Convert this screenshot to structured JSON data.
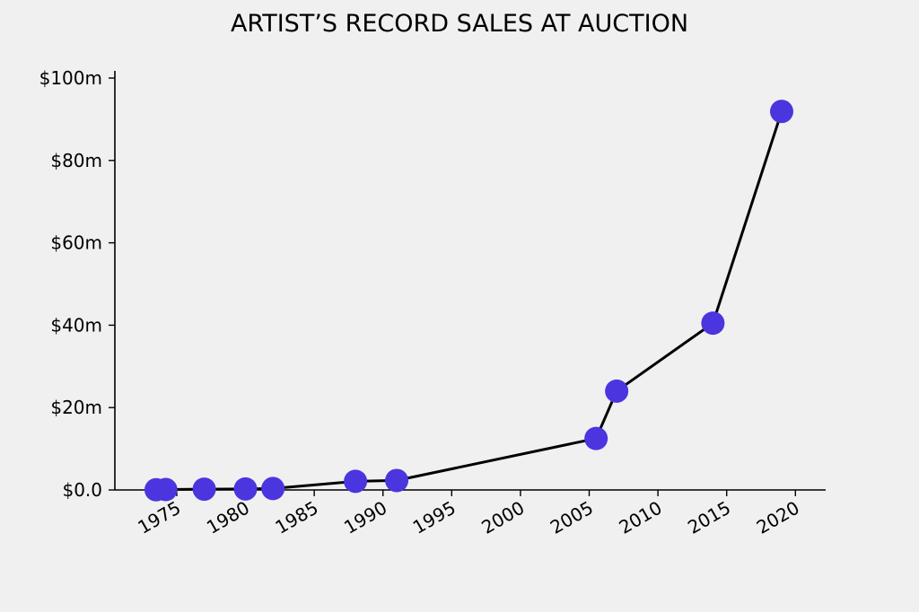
{
  "chart_data": {
    "type": "line",
    "title": "ARTIST’S RECORD SALES AT AUCTION",
    "xlabel": "",
    "ylabel": "",
    "xlim": [
      1970.5,
      2022.2
    ],
    "ylim": [
      0,
      100
    ],
    "x_ticks": [
      1975,
      1980,
      1985,
      1990,
      1995,
      2000,
      2005,
      2010,
      2015,
      2020
    ],
    "y_ticks": [
      {
        "value": 0,
        "label": "$0.0"
      },
      {
        "value": 20,
        "label": "$20m"
      },
      {
        "value": 40,
        "label": "$40m"
      },
      {
        "value": 60,
        "label": "$60m"
      },
      {
        "value": 80,
        "label": "$80m"
      },
      {
        "value": 100,
        "label": "$100m"
      }
    ],
    "grid": false,
    "line_color": "#000000",
    "marker_color": "#4b35df",
    "series": [
      {
        "x": [
          1973.5,
          1974.2,
          1977.0,
          1980.0,
          1982.0,
          1988.0,
          1991.0,
          2005.5,
          2007.0,
          2014.0,
          2019.0
        ],
        "y": [
          0.05,
          0.1,
          0.2,
          0.25,
          0.35,
          2.1,
          2.3,
          12.5,
          24.0,
          40.5,
          91.9
        ]
      }
    ]
  }
}
